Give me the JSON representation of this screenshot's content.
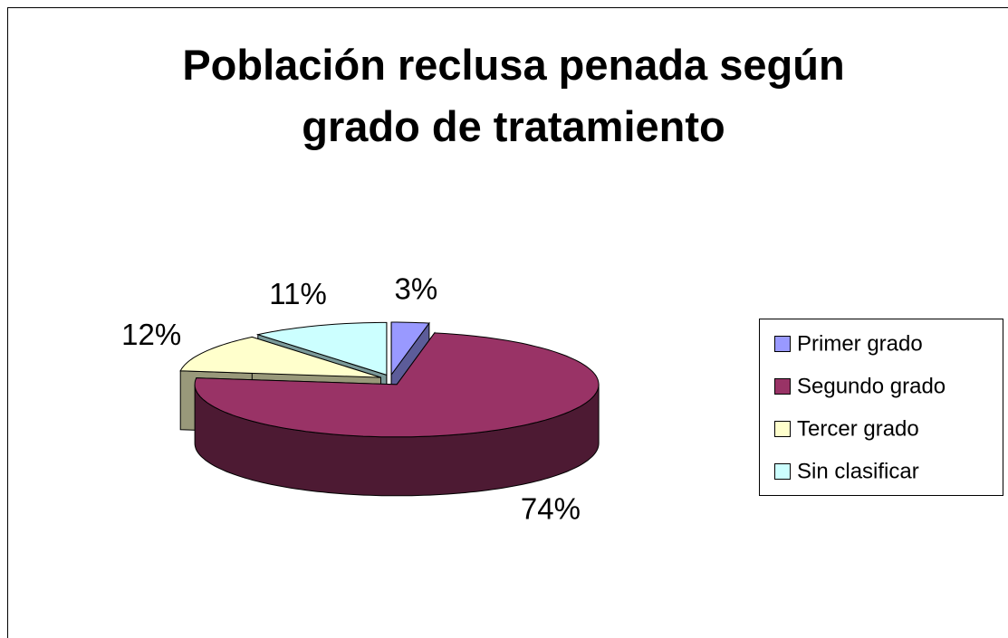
{
  "chart_data": {
    "type": "pie",
    "title": "Población reclusa penada según grado de tratamiento",
    "categories": [
      "Primer grado",
      "Segundo grado",
      "Tercer grado",
      "Sin clasificar"
    ],
    "values": [
      3,
      74,
      12,
      11
    ],
    "value_labels": [
      "3%",
      "74%",
      "12%",
      "11%"
    ],
    "colors": [
      "#9999ff",
      "#993366",
      "#ffffcc",
      "#ccffff"
    ],
    "legend": "right"
  }
}
